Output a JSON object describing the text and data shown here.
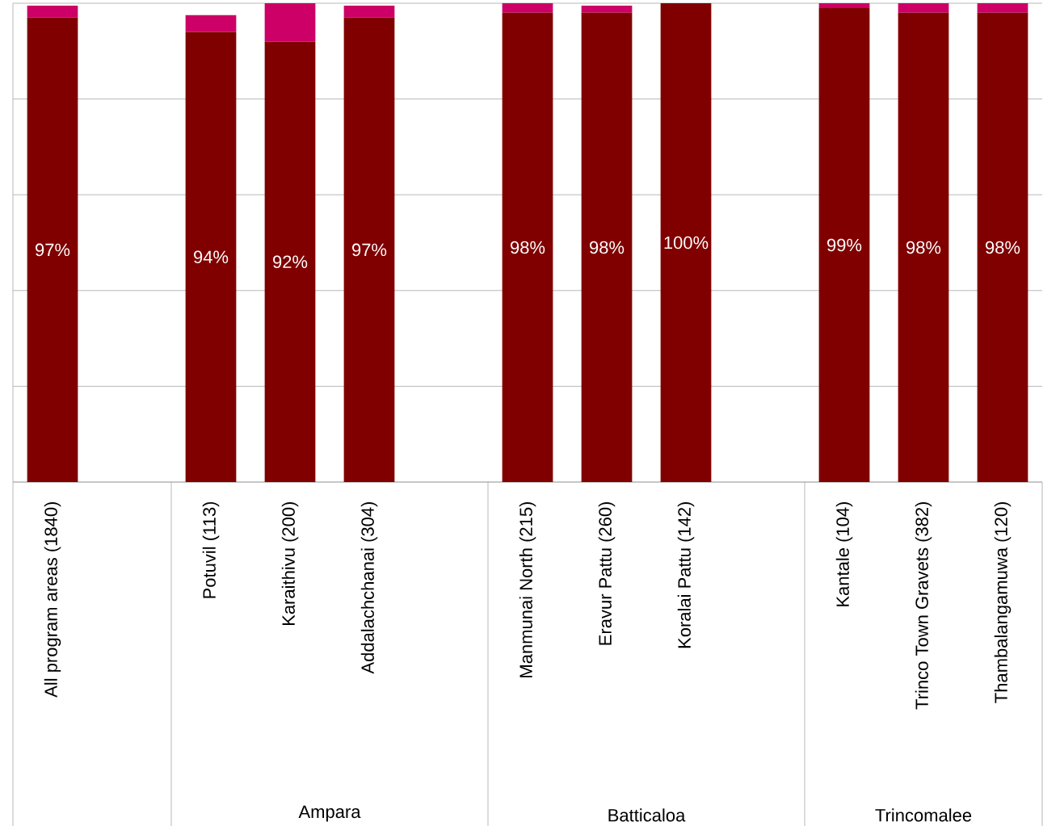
{
  "chart_data": {
    "type": "bar",
    "stacked": true,
    "categories": [
      "All program areas (1840)",
      null,
      "Potuvil (113)",
      "Karaithivu (200)",
      "Addalachchanai (304)",
      null,
      "Manmunai North (215)",
      "Eravur Pattu (260)",
      "Koralai Pattu (142)",
      null,
      "Kantale (104)",
      "Trinco Town Gravets (382)",
      "Thambalangamuwa (120)"
    ],
    "series": [
      {
        "color": "#800000",
        "values": [
          97,
          null,
          94,
          92,
          97,
          null,
          98,
          98,
          100,
          null,
          99,
          98,
          98
        ],
        "value_labels": [
          "97%",
          null,
          "94%",
          "92%",
          "97%",
          null,
          "98%",
          "98%",
          "100%",
          null,
          "99%",
          "98%",
          "98%"
        ]
      },
      {
        "color": "#cc0066",
        "values": [
          2.5,
          null,
          3.5,
          8,
          2.5,
          null,
          2,
          1.5,
          0,
          null,
          1,
          2,
          2
        ]
      }
    ],
    "ylim": [
      0,
      100
    ],
    "yticks": [
      {
        "value": 0,
        "label": null
      },
      {
        "value": 20,
        "label": null
      },
      {
        "value": 40,
        "label": null
      },
      {
        "value": 60,
        "label": null
      },
      {
        "value": 80,
        "label": null
      },
      {
        "value": 100,
        "label": null
      }
    ],
    "grid": "y",
    "annotations": [
      "Ampara",
      "Batticaloa",
      "Trincomalee"
    ]
  }
}
